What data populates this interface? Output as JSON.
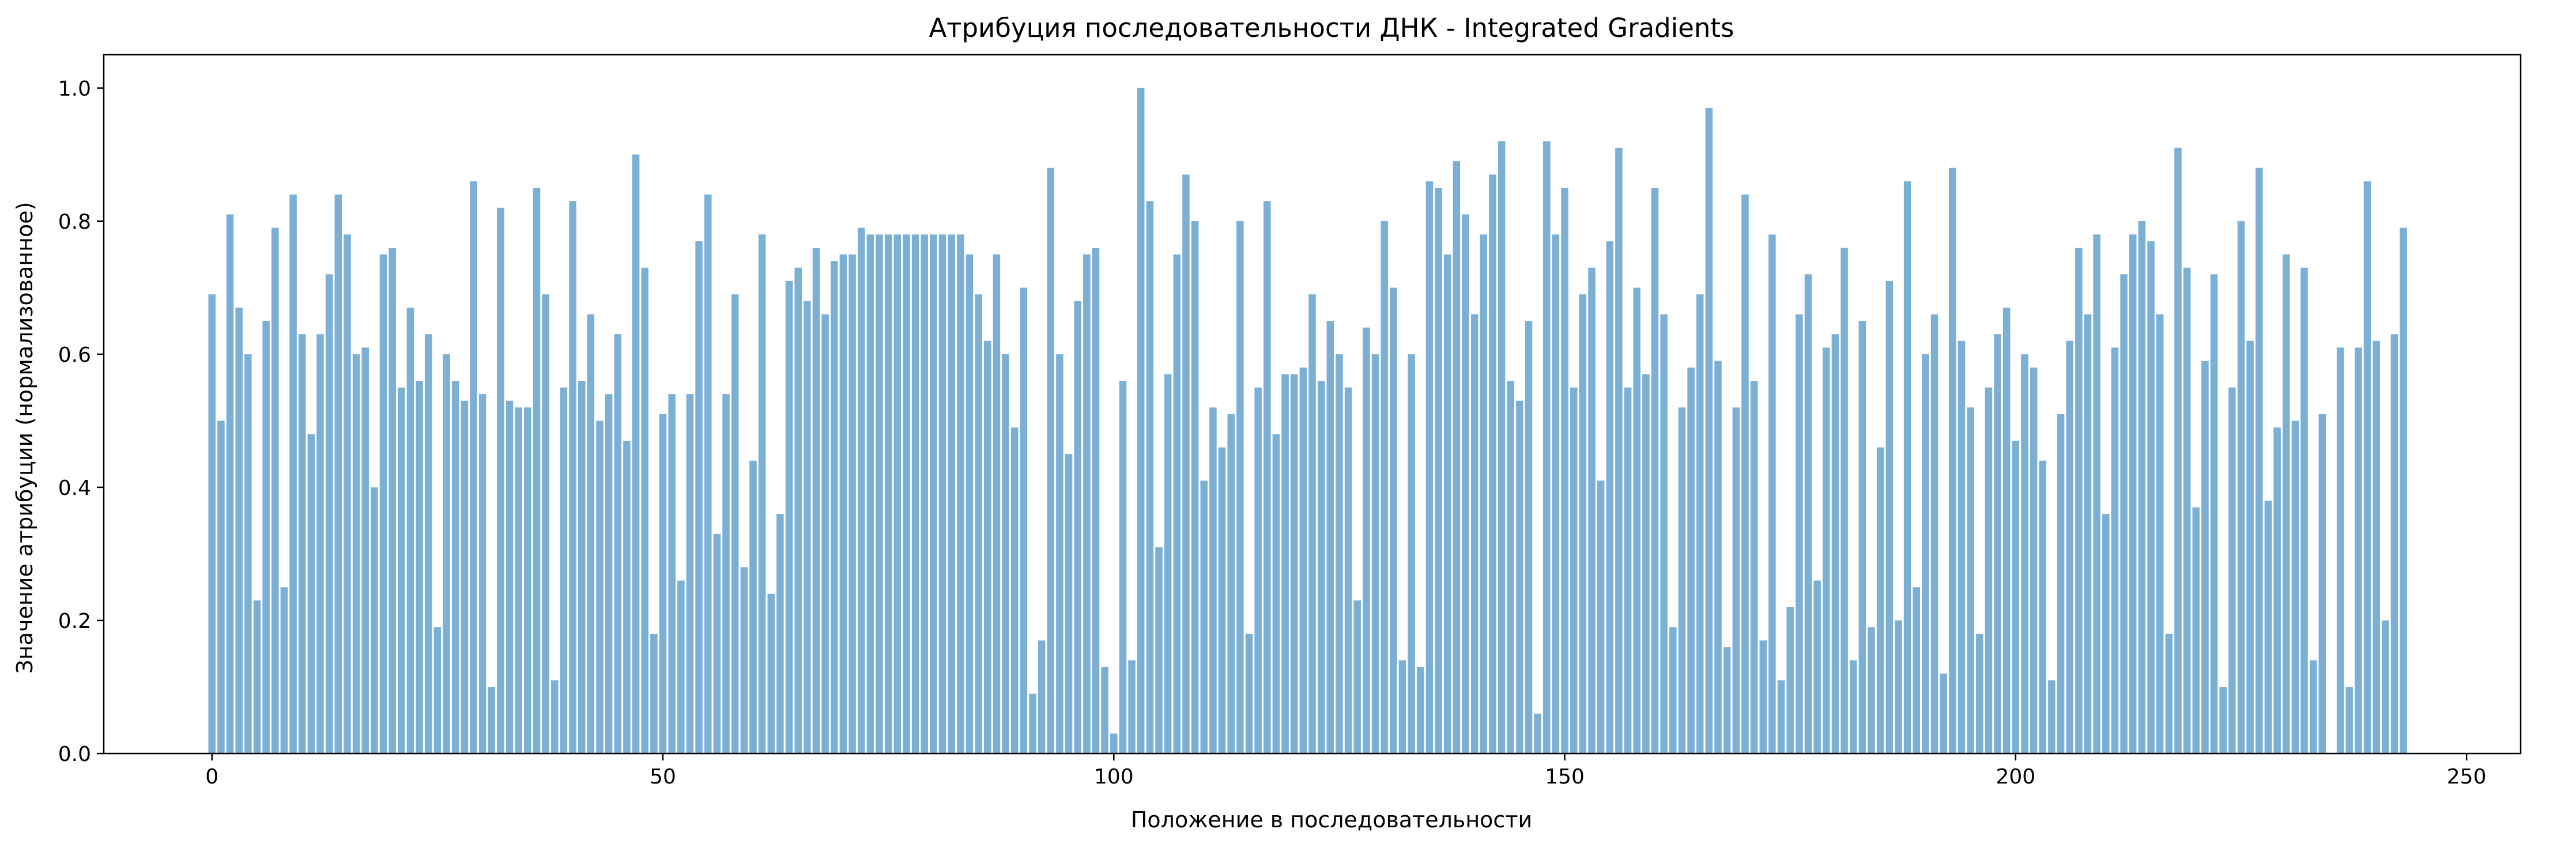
{
  "chart_data": {
    "type": "bar",
    "title": "Атрибуция последовательности ДНК - Integrated Gradients",
    "xlabel": "Положение в последовательности",
    "ylabel": "Значение атрибуции (нормализованное)",
    "xlim": [
      -12,
      256
    ],
    "ylim": [
      0,
      1.05
    ],
    "xticks": [
      0,
      50,
      100,
      150,
      200,
      250
    ],
    "xtick_labels": [
      "0",
      "50",
      "100",
      "150",
      "200",
      "250"
    ],
    "yticks": [
      0,
      0.2,
      0.4,
      0.6,
      0.8,
      1.0
    ],
    "ytick_labels": [
      "0.0",
      "0.2",
      "0.4",
      "0.6",
      "0.8",
      "1.0"
    ],
    "bar_color": "#7bafd4",
    "grid": false,
    "legend": "none",
    "x_start": 0,
    "values": [
      0.69,
      0.5,
      0.81,
      0.67,
      0.6,
      0.23,
      0.65,
      0.79,
      0.25,
      0.84,
      0.63,
      0.48,
      0.63,
      0.72,
      0.84,
      0.78,
      0.6,
      0.61,
      0.4,
      0.75,
      0.76,
      0.55,
      0.67,
      0.56,
      0.63,
      0.19,
      0.6,
      0.56,
      0.53,
      0.86,
      0.54,
      0.1,
      0.82,
      0.53,
      0.52,
      0.52,
      0.85,
      0.69,
      0.11,
      0.55,
      0.83,
      0.56,
      0.66,
      0.5,
      0.54,
      0.63,
      0.47,
      0.9,
      0.73,
      0.18,
      0.51,
      0.54,
      0.26,
      0.54,
      0.77,
      0.84,
      0.33,
      0.54,
      0.69,
      0.28,
      0.44,
      0.78,
      0.24,
      0.36,
      0.71,
      0.73,
      0.68,
      0.76,
      0.66,
      0.74,
      0.75,
      0.75,
      0.79,
      0.78,
      0.78,
      0.78,
      0.78,
      0.78,
      0.78,
      0.78,
      0.78,
      0.78,
      0.78,
      0.78,
      0.75,
      0.69,
      0.62,
      0.75,
      0.6,
      0.49,
      0.7,
      0.09,
      0.17,
      0.88,
      0.6,
      0.45,
      0.68,
      0.75,
      0.76,
      0.13,
      0.03,
      0.56,
      0.14,
      1.0,
      0.83,
      0.31,
      0.57,
      0.75,
      0.87,
      0.8,
      0.41,
      0.52,
      0.46,
      0.51,
      0.8,
      0.18,
      0.55,
      0.83,
      0.48,
      0.57,
      0.57,
      0.58,
      0.69,
      0.56,
      0.65,
      0.6,
      0.55,
      0.23,
      0.64,
      0.6,
      0.8,
      0.7,
      0.14,
      0.6,
      0.13,
      0.86,
      0.85,
      0.75,
      0.89,
      0.81,
      0.66,
      0.78,
      0.87,
      0.92,
      0.56,
      0.53,
      0.65,
      0.06,
      0.92,
      0.78,
      0.85,
      0.55,
      0.69,
      0.73,
      0.41,
      0.77,
      0.91,
      0.55,
      0.7,
      0.57,
      0.85,
      0.66,
      0.19,
      0.52,
      0.58,
      0.69,
      0.97,
      0.59,
      0.16,
      0.52,
      0.84,
      0.56,
      0.17,
      0.78,
      0.11,
      0.22,
      0.66,
      0.72,
      0.26,
      0.61,
      0.63,
      0.76,
      0.14,
      0.65,
      0.19,
      0.46,
      0.71,
      0.2,
      0.86,
      0.25,
      0.6,
      0.66,
      0.12,
      0.88,
      0.62,
      0.52,
      0.18,
      0.55,
      0.63,
      0.67,
      0.47,
      0.6,
      0.58,
      0.44,
      0.11,
      0.51,
      0.62,
      0.76,
      0.66,
      0.78,
      0.36,
      0.61,
      0.72,
      0.78,
      0.8,
      0.77,
      0.66,
      0.18,
      0.91,
      0.73,
      0.37,
      0.59,
      0.72,
      0.1,
      0.55,
      0.8,
      0.62,
      0.88,
      0.38,
      0.49,
      0.75,
      0.5,
      0.73,
      0.14,
      0.51,
      0.0,
      0.61,
      0.1,
      0.61,
      0.86,
      0.62,
      0.2,
      0.63,
      0.79
    ]
  }
}
